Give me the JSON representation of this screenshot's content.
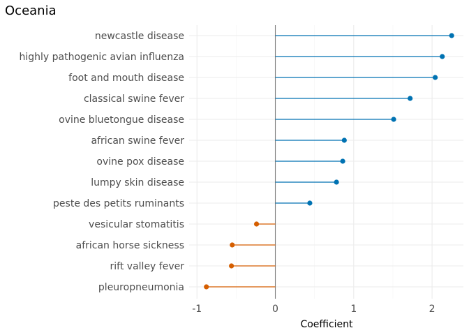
{
  "chart_data": {
    "type": "lollipop",
    "title": "Oceania",
    "xlabel": "Coefficient",
    "ylabel": "",
    "xlim": [
      -1.1,
      2.4
    ],
    "xticks": [
      -1,
      0,
      1,
      2
    ],
    "xtick_labels": [
      "-1",
      "0",
      "1",
      "2"
    ],
    "grid": true,
    "categories": [
      "newcastle disease",
      "highly pathogenic avian influenza",
      "foot and mouth disease",
      "classical swine fever",
      "ovine bluetongue disease",
      "african swine fever",
      "ovine pox disease",
      "lumpy skin disease",
      "peste des petits ruminants",
      "vesicular stomatitis",
      "african horse sickness",
      "rift valley fever",
      "pleuropneumonia"
    ],
    "values": [
      2.25,
      2.13,
      2.04,
      1.72,
      1.51,
      0.88,
      0.86,
      0.78,
      0.44,
      -0.24,
      -0.55,
      -0.56,
      -0.88
    ],
    "colors": {
      "positive": "#0072b2",
      "negative": "#d55e00",
      "zero_line": "#7f7f7f",
      "grid_major": "#ebebeb",
      "grid_minor": "#f5f5f5"
    }
  }
}
